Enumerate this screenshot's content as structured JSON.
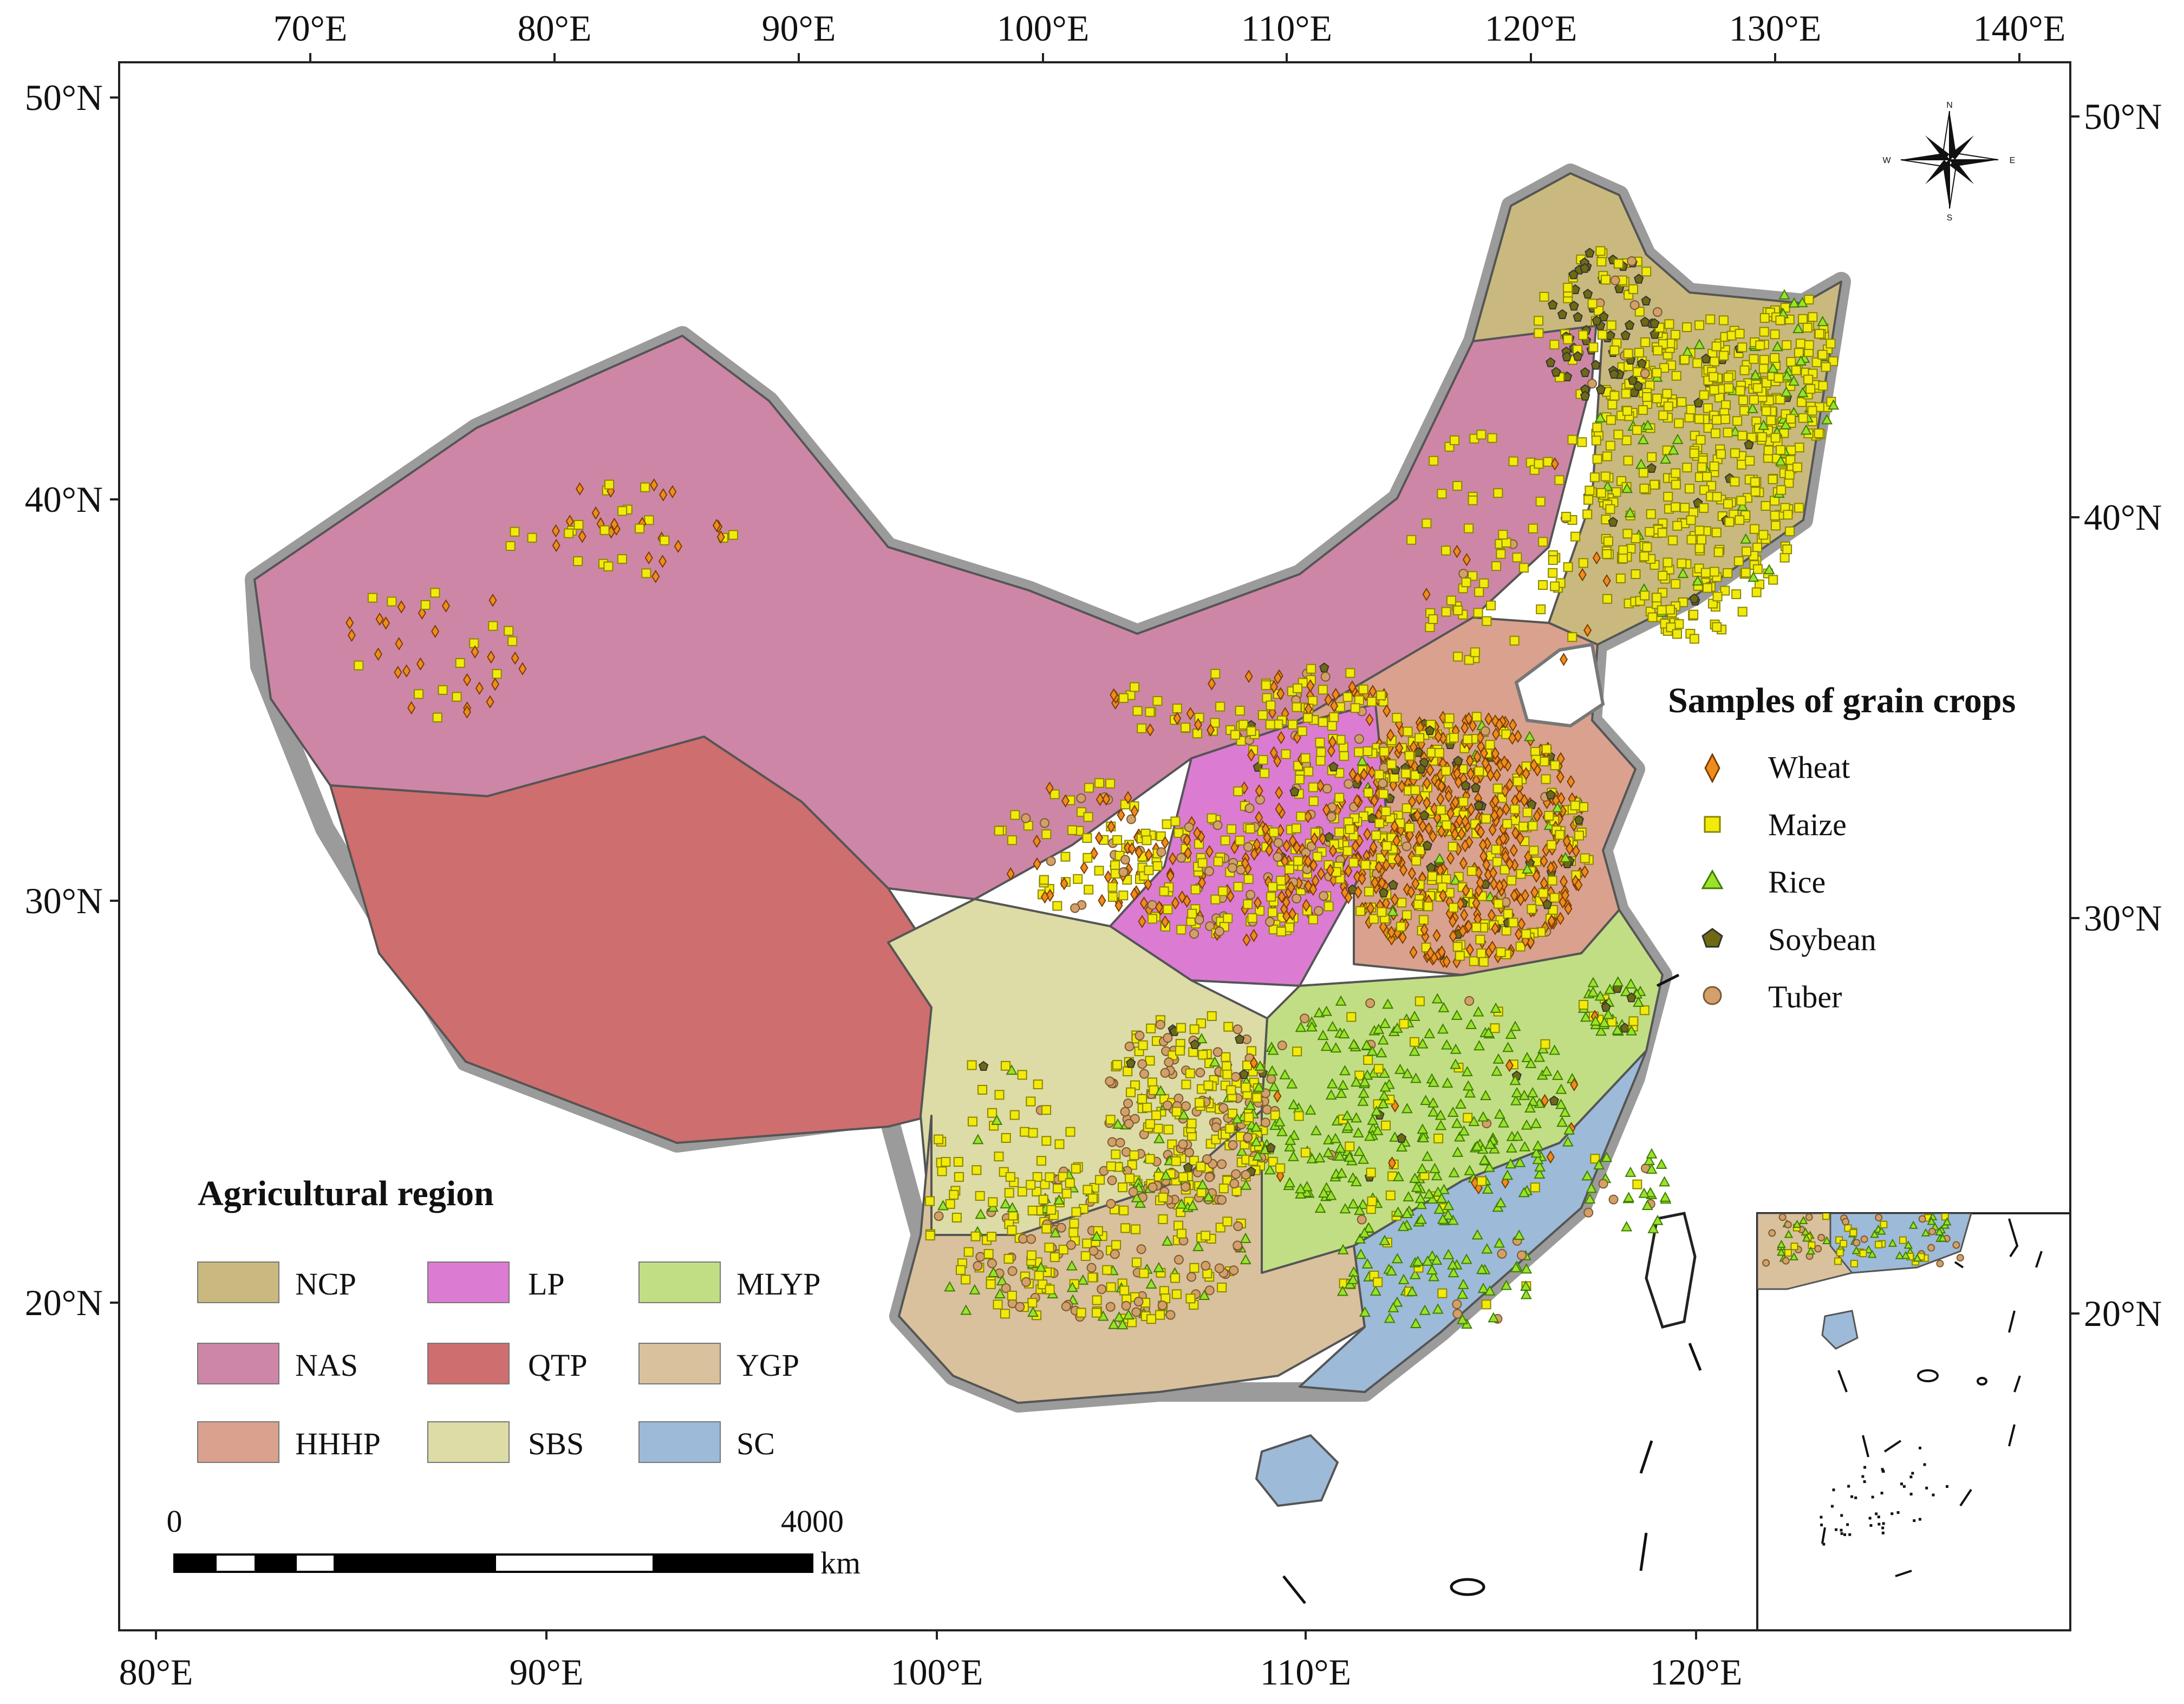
{
  "map": {
    "top_axis_labels": [
      "70°E",
      "80°E",
      "90°E",
      "100°E",
      "110°E",
      "120°E",
      "130°E",
      "140°E"
    ],
    "bottom_axis_labels": [
      "80°E",
      "90°E",
      "100°E",
      "110°E",
      "120°E"
    ],
    "left_axis_labels": [
      "50°N",
      "40°N",
      "30°N",
      "20°N"
    ],
    "right_axis_labels": [
      "50°N",
      "40°N",
      "30°N",
      "20°N"
    ]
  },
  "compass": {
    "n": "N",
    "s": "S",
    "e": "E",
    "w": "W"
  },
  "samples_legend": {
    "title": "Samples of grain crops",
    "items": [
      {
        "label": "Wheat",
        "symbol": "diamond",
        "color": "#F08C1E"
      },
      {
        "label": "Maize",
        "symbol": "square",
        "color": "#F2EA0A"
      },
      {
        "label": "Rice",
        "symbol": "triangle",
        "color": "#9BE22C"
      },
      {
        "label": "Soybean",
        "symbol": "pentagon",
        "color": "#6E6A14"
      },
      {
        "label": "Tuber",
        "symbol": "circle",
        "color": "#D4A06A"
      }
    ]
  },
  "region_legend": {
    "title": "Agricultural region",
    "items": [
      {
        "label": "NCP",
        "color": "#C9B97E"
      },
      {
        "label": "LP",
        "color": "#DC7BD2"
      },
      {
        "label": "MLYP",
        "color": "#C2DE84"
      },
      {
        "label": "NAS",
        "color": "#CE86A6"
      },
      {
        "label": "QTP",
        "color": "#CE6E6E"
      },
      {
        "label": "YGP",
        "color": "#D8C19C"
      },
      {
        "label": "HHHP",
        "color": "#D9A18E"
      },
      {
        "label": "SBS",
        "color": "#DDDBA6"
      },
      {
        "label": "SC",
        "color": "#9DBAD8"
      }
    ]
  },
  "scale_bar": {
    "start": "0",
    "end": "4000",
    "unit": "km"
  }
}
